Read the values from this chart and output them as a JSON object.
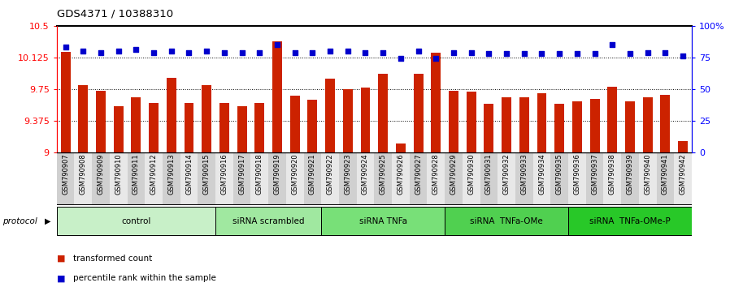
{
  "title": "GDS4371 / 10388310",
  "samples": [
    "GSM790907",
    "GSM790908",
    "GSM790909",
    "GSM790910",
    "GSM790911",
    "GSM790912",
    "GSM790913",
    "GSM790914",
    "GSM790915",
    "GSM790916",
    "GSM790917",
    "GSM790918",
    "GSM790919",
    "GSM790920",
    "GSM790921",
    "GSM790922",
    "GSM790923",
    "GSM790924",
    "GSM790925",
    "GSM790926",
    "GSM790927",
    "GSM790928",
    "GSM790929",
    "GSM790930",
    "GSM790931",
    "GSM790932",
    "GSM790933",
    "GSM790934",
    "GSM790935",
    "GSM790936",
    "GSM790937",
    "GSM790938",
    "GSM790939",
    "GSM790940",
    "GSM790941",
    "GSM790942"
  ],
  "bar_values": [
    10.19,
    9.8,
    9.73,
    9.55,
    9.65,
    9.58,
    9.88,
    9.58,
    9.8,
    9.58,
    9.55,
    9.58,
    10.32,
    9.67,
    9.62,
    9.87,
    9.75,
    9.77,
    9.93,
    9.1,
    9.93,
    10.18,
    9.73,
    9.72,
    9.57,
    9.65,
    9.65,
    9.7,
    9.57,
    9.6,
    9.63,
    9.78,
    9.6,
    9.65,
    9.68,
    9.13
  ],
  "percentile_values": [
    83,
    80,
    79,
    80,
    81,
    79,
    80,
    79,
    80,
    79,
    79,
    79,
    85,
    79,
    79,
    80,
    80,
    79,
    79,
    74,
    80,
    74,
    79,
    79,
    78,
    78,
    78,
    78,
    78,
    78,
    78,
    85,
    78,
    79,
    79,
    76
  ],
  "group_boundaries": [
    [
      0,
      8,
      "control",
      "#d4f0d4"
    ],
    [
      9,
      14,
      "siRNA scrambled",
      "#a8e8a8"
    ],
    [
      15,
      21,
      "siRNA TNFa",
      "#78d878"
    ],
    [
      22,
      28,
      "siRNA  TNFa-OMe",
      "#50c850"
    ],
    [
      29,
      35,
      "siRNA  TNFa-OMe-P",
      "#28b828"
    ]
  ],
  "ylim_left": [
    9.0,
    10.5
  ],
  "ylim_right": [
    0,
    100
  ],
  "yticks_left": [
    9.0,
    9.375,
    9.75,
    10.125,
    10.5
  ],
  "ytick_labels_left": [
    "9",
    "9.375",
    "9.75",
    "10.125",
    "10.5"
  ],
  "yticks_right": [
    0,
    25,
    50,
    75,
    100
  ],
  "ytick_labels_right": [
    "0",
    "25",
    "50",
    "75",
    "100%"
  ],
  "bar_color": "#cc2200",
  "dot_color": "#0000cc",
  "bg_color": "#ffffff"
}
